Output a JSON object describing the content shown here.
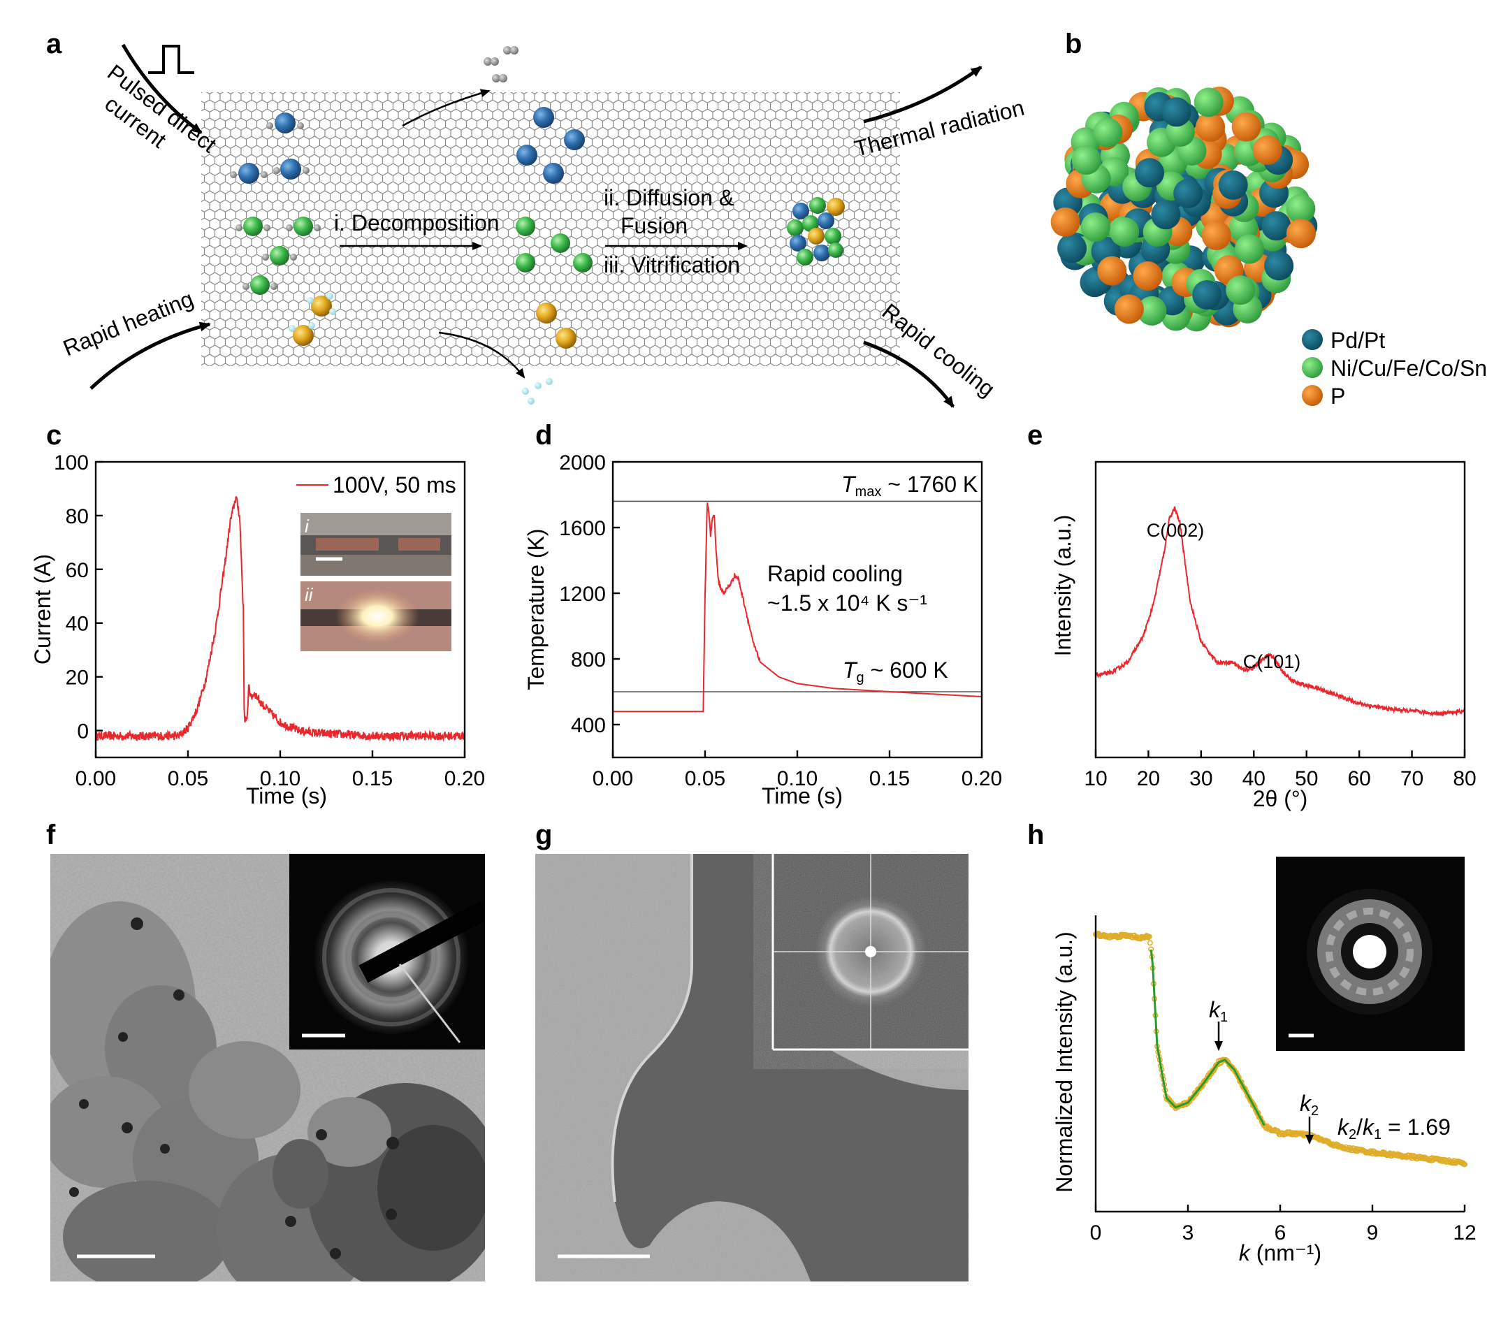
{
  "panel_labels": [
    "a",
    "b",
    "c",
    "d",
    "e",
    "f",
    "g",
    "h"
  ],
  "panel_a": {
    "pulsed_line1": "Pulsed direct",
    "pulsed_line2": "current",
    "rapid_heating": "Rapid heating",
    "decomposition": "i. Decomposition",
    "diffusion_line1": "ii. Diffusion &",
    "diffusion_line2": "Fusion",
    "vitrification": "iii. Vitrification",
    "thermal_radiation": "Thermal radiation",
    "rapid_cooling": "Rapid cooling"
  },
  "panel_b": {
    "legend": [
      {
        "label": "Pd/Pt",
        "color": "#14607a"
      },
      {
        "label": "Ni/Cu/Fe/Co/Sn",
        "color": "#3cb94a"
      },
      {
        "label": "P",
        "color": "#ec7a10"
      }
    ]
  },
  "chart_data": [
    {
      "panel": "c",
      "type": "line",
      "xlabel": "Time (s)",
      "ylabel": "Current (A)",
      "xlim": [
        0,
        0.2
      ],
      "ylim": [
        -10,
        100
      ],
      "xticks": [
        "0.00",
        "0.05",
        "0.10",
        "0.15",
        "0.20"
      ],
      "yticks": [
        "0",
        "20",
        "40",
        "60",
        "80",
        "100"
      ],
      "series": [
        {
          "name": "100V, 50 ms",
          "color": "#e8282d",
          "x": [
            0,
            0.02,
            0.045,
            0.05,
            0.055,
            0.06,
            0.065,
            0.07,
            0.073,
            0.076,
            0.078,
            0.08,
            0.0805,
            0.082,
            0.083,
            0.084,
            0.086,
            0.09,
            0.1,
            0.11,
            0.12,
            0.15,
            0.2
          ],
          "y": [
            -2,
            -2,
            -2,
            1,
            8,
            20,
            38,
            62,
            78,
            87,
            80,
            45,
            5,
            3,
            18,
            12,
            14,
            10,
            3,
            0,
            -1,
            -2,
            -2
          ]
        }
      ],
      "inset": {
        "labels": [
          "i",
          "ii"
        ]
      }
    },
    {
      "panel": "d",
      "type": "line",
      "xlabel": "Time (s)",
      "ylabel": "Temperature (K)",
      "xlim": [
        0,
        0.2
      ],
      "ylim": [
        200,
        2000
      ],
      "xticks": [
        "0.00",
        "0.05",
        "0.10",
        "0.15",
        "0.20"
      ],
      "yticks": [
        "400",
        "800",
        "1200",
        "1600",
        "2000"
      ],
      "series": [
        {
          "name": "",
          "color": "#e8282d",
          "x": [
            0,
            0.049,
            0.05,
            0.0512,
            0.052,
            0.053,
            0.054,
            0.055,
            0.0555,
            0.057,
            0.058,
            0.06,
            0.064,
            0.066,
            0.068,
            0.072,
            0.076,
            0.08,
            0.09,
            0.1,
            0.12,
            0.15,
            0.2
          ],
          "y": [
            480,
            480,
            1200,
            1760,
            1690,
            1550,
            1660,
            1680,
            1550,
            1300,
            1240,
            1200,
            1260,
            1310,
            1290,
            1100,
            900,
            780,
            690,
            650,
            620,
            600,
            570
          ]
        }
      ],
      "reference_lines": [
        1760,
        600
      ],
      "annotations": {
        "tmax_symbol": "T",
        "tmax_sub": "max",
        "tmax_value": " ~ 1760 K",
        "tg_symbol": "T",
        "tg_sub": "g",
        "tg_value": " ~ 600 K",
        "cooling_line1": "Rapid cooling",
        "cooling_line2": "~1.5 x 10⁴ K s⁻¹"
      }
    },
    {
      "panel": "e",
      "type": "line",
      "xlabel": "2θ (°)",
      "ylabel": "Intensity (a.u.)",
      "xlim": [
        10,
        80
      ],
      "xticks": [
        "10",
        "20",
        "30",
        "40",
        "50",
        "60",
        "70",
        "80"
      ],
      "series": [
        {
          "name": "",
          "color": "#e8282d",
          "x": [
            10,
            13,
            16,
            19,
            21,
            23,
            24,
            25,
            26,
            27,
            28,
            30,
            33,
            36,
            38,
            40,
            42,
            43,
            44,
            46,
            48,
            52,
            56,
            60,
            65,
            70,
            75,
            80
          ],
          "y": [
            0.17,
            0.18,
            0.22,
            0.32,
            0.45,
            0.65,
            0.78,
            0.82,
            0.76,
            0.6,
            0.45,
            0.3,
            0.22,
            0.22,
            0.19,
            0.2,
            0.24,
            0.25,
            0.23,
            0.17,
            0.14,
            0.12,
            0.09,
            0.06,
            0.04,
            0.03,
            0.02,
            0.03
          ]
        }
      ],
      "annotations": [
        "C(002)",
        "C(101)"
      ]
    },
    {
      "panel": "h",
      "type": "line",
      "xlabel_symbol": "k",
      "xlabel_unit": " (nm⁻¹)",
      "ylabel": "Normalized Intensity (a.u.)",
      "xlim": [
        0,
        12
      ],
      "xticks": [
        "0",
        "3",
        "6",
        "9",
        "12"
      ],
      "series": [
        {
          "name": "",
          "color": "#e0ad2b",
          "fit_color": "#2a9a2a",
          "x": [
            0,
            0.5,
            1,
            1.5,
            1.75,
            1.85,
            2.0,
            2.3,
            2.6,
            3.0,
            3.5,
            4.0,
            4.2,
            4.5,
            5.0,
            5.5,
            6.0,
            6.5,
            7.0,
            8.0,
            9.0,
            10.0,
            11.0,
            12.0
          ],
          "y": [
            0.97,
            0.96,
            0.965,
            0.955,
            0.96,
            0.85,
            0.5,
            0.28,
            0.24,
            0.26,
            0.34,
            0.43,
            0.44,
            0.4,
            0.28,
            0.16,
            0.13,
            0.13,
            0.12,
            0.07,
            0.05,
            0.035,
            0.02,
            0.005
          ]
        }
      ],
      "annotations": {
        "k1_symbol": "k",
        "k1_sub": "1",
        "k2_symbol": "k",
        "k2_sub": "2",
        "ratio_num_symbol": "k",
        "ratio_num_sub": "2",
        "ratio_slash": "/",
        "ratio_den_symbol": "k",
        "ratio_den_sub": "1",
        "ratio_value": " = 1.69"
      }
    }
  ]
}
